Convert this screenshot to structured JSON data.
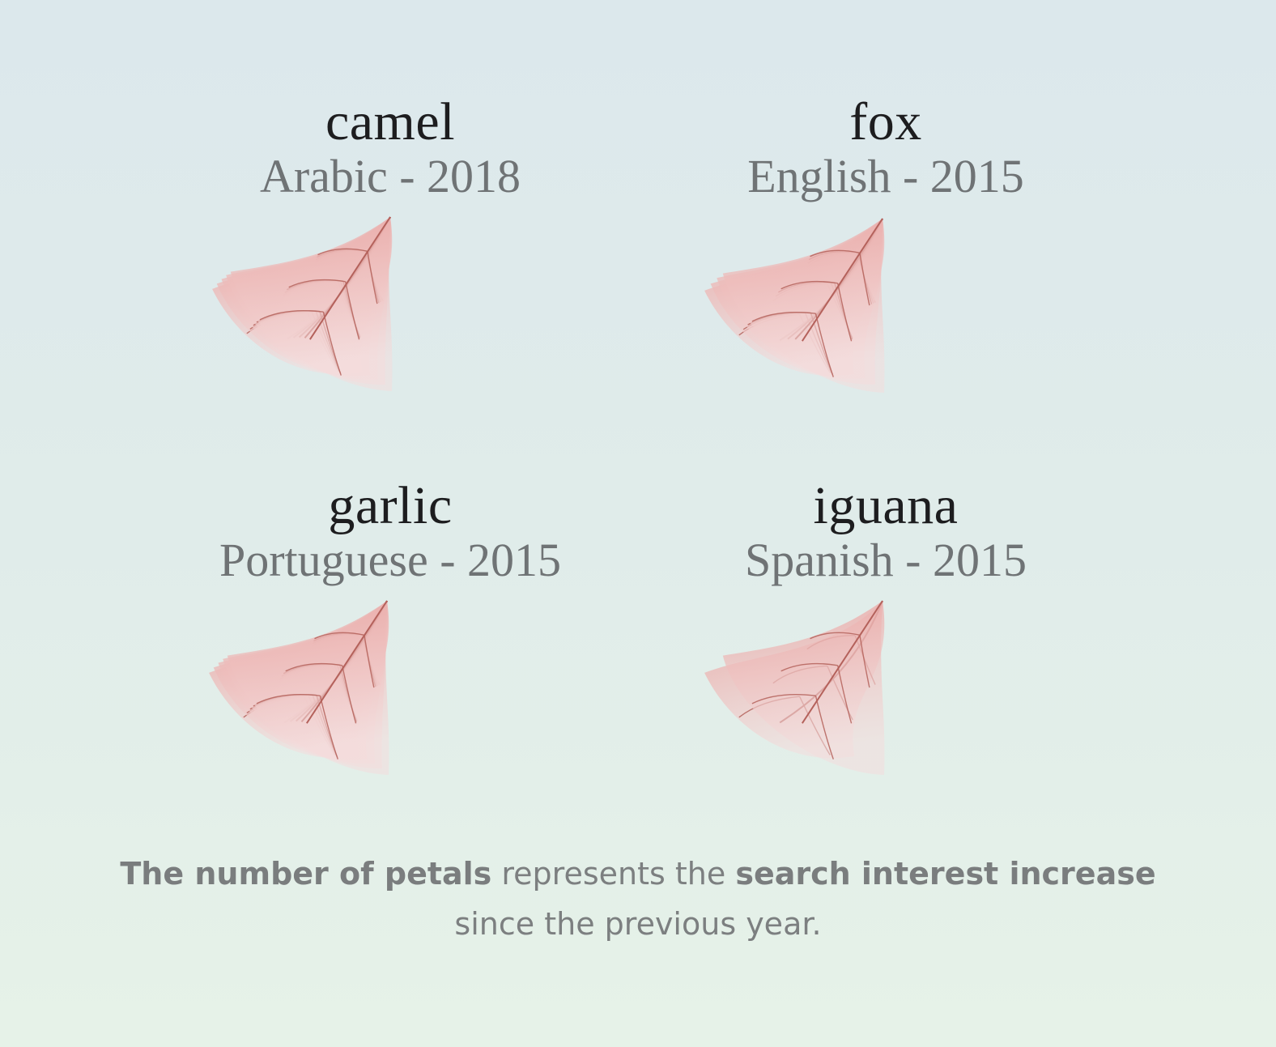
{
  "chart_data": {
    "type": "flower-glyph",
    "items": [
      {
        "word": "camel",
        "language_year": "Arabic - 2018",
        "petals": 5
      },
      {
        "word": "fox",
        "language_year": "English - 2015",
        "petals": 4
      },
      {
        "word": "garlic",
        "language_year": "Portuguese - 2015",
        "petals": 5
      },
      {
        "word": "iguana",
        "language_year": "Spanish - 2015",
        "petals": 2
      }
    ],
    "legend": {
      "bold1": "The number of petals",
      "normal1": " represents the ",
      "bold2": "search interest increase",
      "normal2": "since the previous year."
    },
    "colors": {
      "petal": "#e8a3a0",
      "vein": "#b4615b"
    }
  }
}
